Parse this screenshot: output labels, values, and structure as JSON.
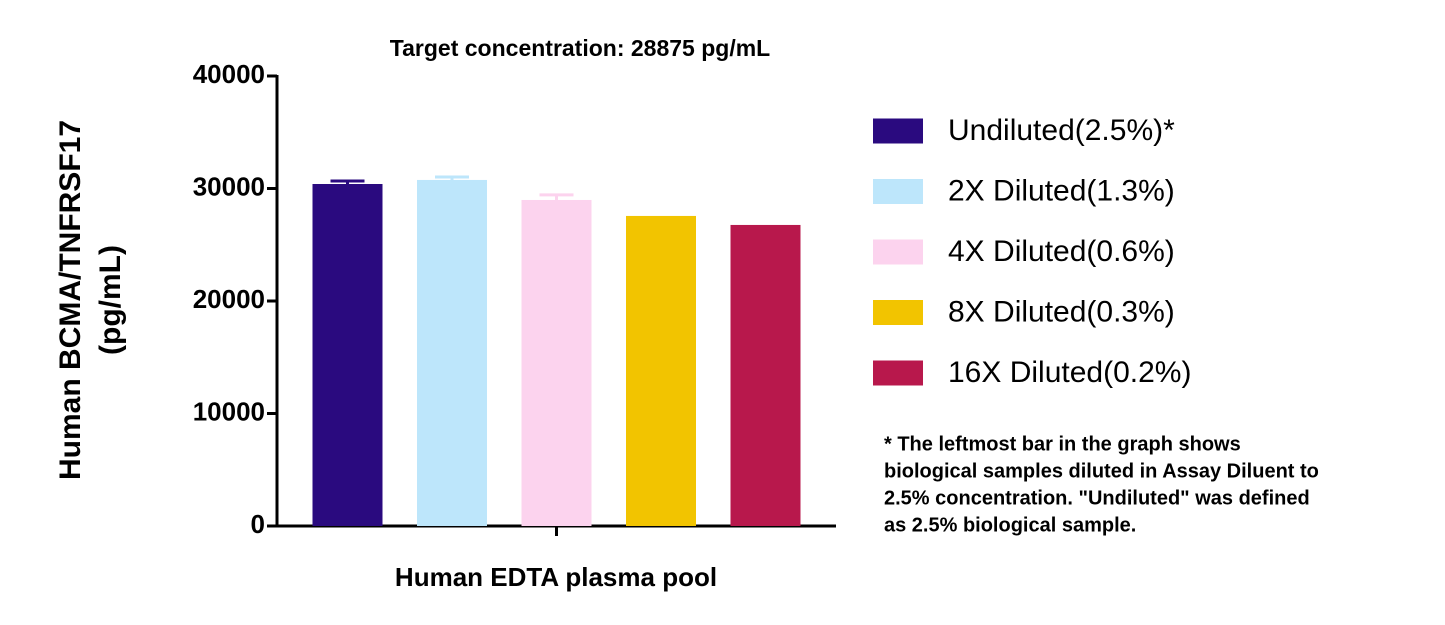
{
  "chart_data": {
    "type": "bar",
    "title": "Target concentration: 28875 pg/mL",
    "y_label_lines": [
      "Human BCMA/TNFRSF17",
      "(pg/mL)"
    ],
    "x_label": "Human EDTA plasma pool",
    "categories": [
      null
    ],
    "series": [
      {
        "name": "Undiluted(2.5%)*",
        "color": "#2a0a7f",
        "values": [
          30400
        ],
        "errors": [
          270
        ]
      },
      {
        "name": "2X Diluted(1.3%)",
        "color": "#bde6fb",
        "values": [
          30760
        ],
        "errors": [
          260
        ]
      },
      {
        "name": "4X Diluted(0.6%)",
        "color": "#fcd3ee",
        "values": [
          28980
        ],
        "errors": [
          450
        ]
      },
      {
        "name": "8X Diluted(0.3%)",
        "color": "#f2c400",
        "values": [
          27560
        ],
        "errors": [
          0
        ]
      },
      {
        "name": "16X Diluted(0.2%)",
        "color": "#b8184c",
        "values": [
          26760
        ],
        "errors": [
          0
        ]
      }
    ],
    "ylim": [
      0,
      40000
    ],
    "yticks": [
      0,
      10000,
      20000,
      30000,
      40000
    ],
    "grid": false,
    "legend": "right",
    "note_lines": [
      "* The leftmost bar in the graph shows",
      "biological samples diluted in Assay Diluent to",
      "2.5% concentration. \"Undiluted\" was defined",
      "as 2.5% biological sample."
    ]
  }
}
